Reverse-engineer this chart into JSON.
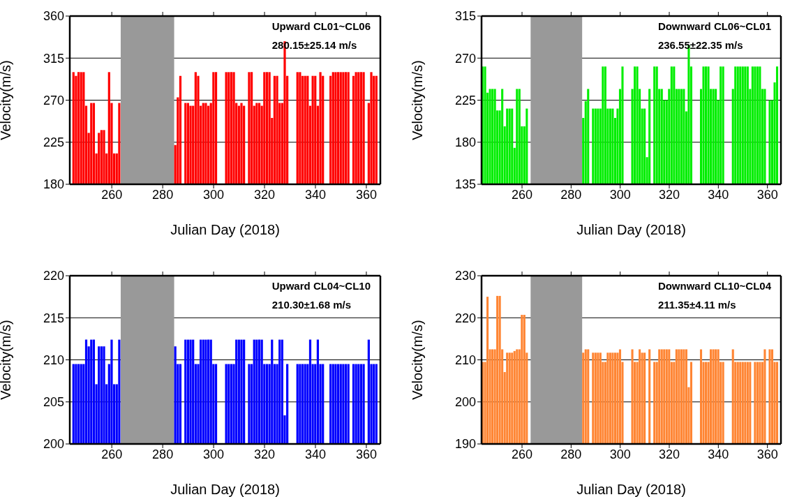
{
  "chart_data": [
    {
      "type": "bar",
      "xlabel": "Julian Day (2018)",
      "ylabel": "Velocity(m/s)",
      "annotations": [
        "Upward CL01~CL06",
        "280.15±25.14 m/s"
      ],
      "color": "#ff0000",
      "xlim": [
        243.5,
        365.5
      ],
      "xticks": [
        260,
        280,
        300,
        320,
        340,
        360
      ],
      "ylim": [
        180,
        360
      ],
      "yticks": [
        180,
        225,
        270,
        315,
        360
      ],
      "grid": "y",
      "bands": [
        {
          "axis": "x",
          "from": 263.5,
          "to": 284.5,
          "color": "#999999"
        }
      ],
      "x": [
        245,
        246,
        247,
        248,
        249,
        250,
        251,
        252,
        253,
        254,
        255,
        256,
        257,
        258,
        259,
        260,
        261,
        262,
        263,
        285,
        286,
        287,
        289,
        290,
        291,
        292,
        293,
        294,
        295,
        296,
        297,
        298,
        299,
        300,
        301,
        305,
        306,
        307,
        308,
        309,
        310,
        311,
        312,
        314,
        315,
        316,
        317,
        318,
        319,
        320,
        321,
        322,
        323,
        324,
        325,
        326,
        327,
        328,
        329,
        333,
        334,
        335,
        336,
        337,
        338,
        339,
        340,
        341,
        342,
        343,
        346,
        347,
        348,
        349,
        350,
        351,
        352,
        353,
        355,
        356,
        357,
        358,
        359,
        361,
        362,
        363,
        364
      ],
      "values": [
        300,
        296,
        300,
        300,
        300,
        264,
        235,
        267,
        267,
        213,
        235,
        238,
        238,
        213,
        300,
        267,
        213,
        213,
        267,
        222,
        273,
        296,
        267,
        267,
        264,
        264,
        300,
        296,
        264,
        267,
        267,
        264,
        267,
        300,
        300,
        300,
        300,
        300,
        300,
        267,
        264,
        267,
        264,
        300,
        300,
        264,
        267,
        267,
        264,
        300,
        300,
        300,
        251,
        296,
        296,
        267,
        267,
        333,
        296,
        300,
        300,
        296,
        296,
        296,
        264,
        296,
        296,
        264,
        300,
        296,
        296,
        300,
        300,
        300,
        300,
        300,
        300,
        300,
        296,
        300,
        300,
        300,
        300,
        267,
        300,
        296,
        296
      ]
    },
    {
      "type": "bar",
      "xlabel": "Julian Day (2018)",
      "ylabel": "Velocity(m/s)",
      "annotations": [
        "Downward CL06~CL01",
        "236.55±22.35 m/s"
      ],
      "color": "#00ee00",
      "xlim": [
        243.5,
        365.5
      ],
      "xticks": [
        260,
        280,
        300,
        320,
        340,
        360
      ],
      "ylim": [
        135,
        315
      ],
      "yticks": [
        135,
        180,
        225,
        270,
        315
      ],
      "grid": "y",
      "bands": [
        {
          "axis": "x",
          "from": 263.5,
          "to": 284.5,
          "color": "#999999"
        }
      ],
      "x": [
        244,
        245,
        246,
        247,
        248,
        249,
        250,
        251,
        252,
        253,
        254,
        255,
        256,
        257,
        258,
        259,
        260,
        261,
        262,
        285,
        286,
        287,
        289,
        290,
        291,
        292,
        293,
        294,
        295,
        296,
        297,
        298,
        299,
        300,
        301,
        305,
        306,
        307,
        308,
        309,
        310,
        311,
        312,
        314,
        315,
        316,
        317,
        318,
        319,
        320,
        321,
        322,
        323,
        324,
        325,
        326,
        327,
        328,
        329,
        333,
        334,
        335,
        336,
        337,
        338,
        339,
        340,
        341,
        342,
        346,
        347,
        348,
        349,
        350,
        351,
        352,
        353,
        354,
        355,
        356,
        357,
        358,
        359,
        361,
        362,
        363,
        364
      ],
      "values": [
        261,
        261,
        233,
        237,
        237,
        237,
        214,
        214,
        237,
        197,
        216,
        216,
        216,
        174,
        237,
        237,
        197,
        197,
        216,
        206,
        224,
        237,
        216,
        216,
        216,
        216,
        261,
        261,
        216,
        216,
        216,
        206,
        216,
        237,
        261,
        237,
        261,
        261,
        237,
        216,
        216,
        164,
        237,
        261,
        261,
        237,
        237,
        225,
        225,
        237,
        261,
        261,
        237,
        237,
        237,
        237,
        213,
        284,
        261,
        237,
        261,
        261,
        261,
        237,
        237,
        237,
        225,
        261,
        261,
        237,
        261,
        261,
        261,
        261,
        261,
        261,
        237,
        261,
        261,
        261,
        261,
        237,
        237,
        225,
        225,
        244,
        261
      ]
    },
    {
      "type": "bar",
      "xlabel": "Julian Day (2018)",
      "ylabel": "Velocity(m/s)",
      "annotations": [
        "Upward CL04~CL10",
        "210.30±1.68 m/s"
      ],
      "color": "#0000ff",
      "xlim": [
        243.5,
        365.5
      ],
      "xticks": [
        260,
        280,
        300,
        320,
        340,
        360
      ],
      "ylim": [
        200,
        220
      ],
      "yticks": [
        200,
        205,
        210,
        215,
        220
      ],
      "grid": "y",
      "bands": [
        {
          "axis": "x",
          "from": 263.5,
          "to": 284.5,
          "color": "#999999"
        }
      ],
      "x": [
        245,
        246,
        247,
        248,
        249,
        250,
        251,
        252,
        253,
        254,
        255,
        256,
        257,
        258,
        259,
        260,
        261,
        262,
        263,
        285,
        286,
        287,
        289,
        290,
        291,
        292,
        293,
        294,
        295,
        296,
        297,
        298,
        299,
        300,
        301,
        305,
        306,
        307,
        308,
        309,
        310,
        311,
        312,
        314,
        315,
        316,
        317,
        318,
        319,
        320,
        321,
        322,
        323,
        324,
        325,
        326,
        327,
        328,
        329,
        333,
        334,
        335,
        336,
        337,
        338,
        339,
        340,
        341,
        342,
        343,
        346,
        347,
        348,
        349,
        350,
        351,
        352,
        353,
        355,
        356,
        357,
        358,
        359,
        361,
        362,
        363,
        364
      ],
      "values": [
        209.5,
        209.5,
        209.5,
        209.5,
        209.5,
        212.4,
        211.6,
        212.4,
        212.4,
        207.1,
        211.6,
        211.6,
        211.6,
        207.1,
        209.5,
        212.4,
        207.1,
        207.1,
        212.4,
        211.6,
        209.5,
        209.5,
        212.4,
        212.4,
        212.4,
        212.4,
        209.5,
        209.5,
        212.4,
        212.4,
        212.4,
        212.4,
        212.4,
        209.5,
        209.5,
        209.5,
        209.5,
        209.5,
        209.5,
        212.4,
        212.4,
        212.4,
        212.4,
        209.5,
        209.5,
        212.4,
        212.4,
        212.4,
        212.4,
        209.5,
        209.5,
        209.5,
        212.4,
        209.5,
        209.5,
        212.4,
        212.4,
        203.4,
        209.5,
        209.5,
        209.5,
        209.5,
        209.5,
        209.5,
        212.4,
        209.5,
        209.5,
        212.4,
        209.5,
        209.5,
        209.5,
        209.5,
        209.5,
        209.5,
        209.5,
        209.5,
        209.5,
        209.5,
        209.5,
        209.5,
        209.5,
        209.5,
        209.5,
        212.4,
        209.5,
        209.5,
        209.5
      ]
    },
    {
      "type": "bar",
      "xlabel": "Julian Day (2018)",
      "ylabel": "Velocity(m/s)",
      "annotations": [
        "Downward CL10~CL04",
        "211.35±4.11 m/s"
      ],
      "color": "#ff8533",
      "xlim": [
        243.5,
        365.5
      ],
      "xticks": [
        260,
        280,
        300,
        320,
        340,
        360
      ],
      "ylim": [
        190,
        230
      ],
      "yticks": [
        190,
        200,
        210,
        220,
        230
      ],
      "grid": "y",
      "bands": [
        {
          "axis": "x",
          "from": 263.5,
          "to": 284.5,
          "color": "#999999"
        }
      ],
      "x": [
        244,
        245,
        246,
        247,
        248,
        249,
        250,
        251,
        252,
        253,
        254,
        255,
        256,
        257,
        258,
        259,
        260,
        261,
        262,
        285,
        286,
        287,
        289,
        290,
        291,
        292,
        293,
        294,
        295,
        296,
        297,
        298,
        299,
        300,
        301,
        305,
        306,
        307,
        308,
        309,
        310,
        312,
        314,
        315,
        316,
        317,
        318,
        319,
        320,
        321,
        322,
        323,
        324,
        325,
        326,
        327,
        328,
        329,
        333,
        334,
        335,
        336,
        337,
        338,
        339,
        340,
        341,
        342,
        346,
        347,
        348,
        349,
        350,
        351,
        352,
        353,
        355,
        356,
        357,
        358,
        359,
        361,
        362,
        363,
        364
      ],
      "values": [
        209.5,
        209.5,
        225,
        212.5,
        212.5,
        212.5,
        225.2,
        225.2,
        212.5,
        207.1,
        211.7,
        211.7,
        211.7,
        212.1,
        212.5,
        212.5,
        220.7,
        220.7,
        211.7,
        211.7,
        212.5,
        212.5,
        211.7,
        211.7,
        211.7,
        211.7,
        209.5,
        209.5,
        211.7,
        211.7,
        211.7,
        211.7,
        211.7,
        212.5,
        209.5,
        212.5,
        209.5,
        209.5,
        212.5,
        211.7,
        211.7,
        212.5,
        209.5,
        209.5,
        212.5,
        212.5,
        212.5,
        212.5,
        212.5,
        209.5,
        209.5,
        212.5,
        212.5,
        212.5,
        212.5,
        212.5,
        203.5,
        209.5,
        212.5,
        209.5,
        209.5,
        209.5,
        212.5,
        212.5,
        212.5,
        212.5,
        209.5,
        209.5,
        212.5,
        209.5,
        209.5,
        209.5,
        209.5,
        209.5,
        209.5,
        209.5,
        209.5,
        209.5,
        209.5,
        209.5,
        212.5,
        212.5,
        212.5,
        209.5,
        209.5
      ]
    }
  ]
}
